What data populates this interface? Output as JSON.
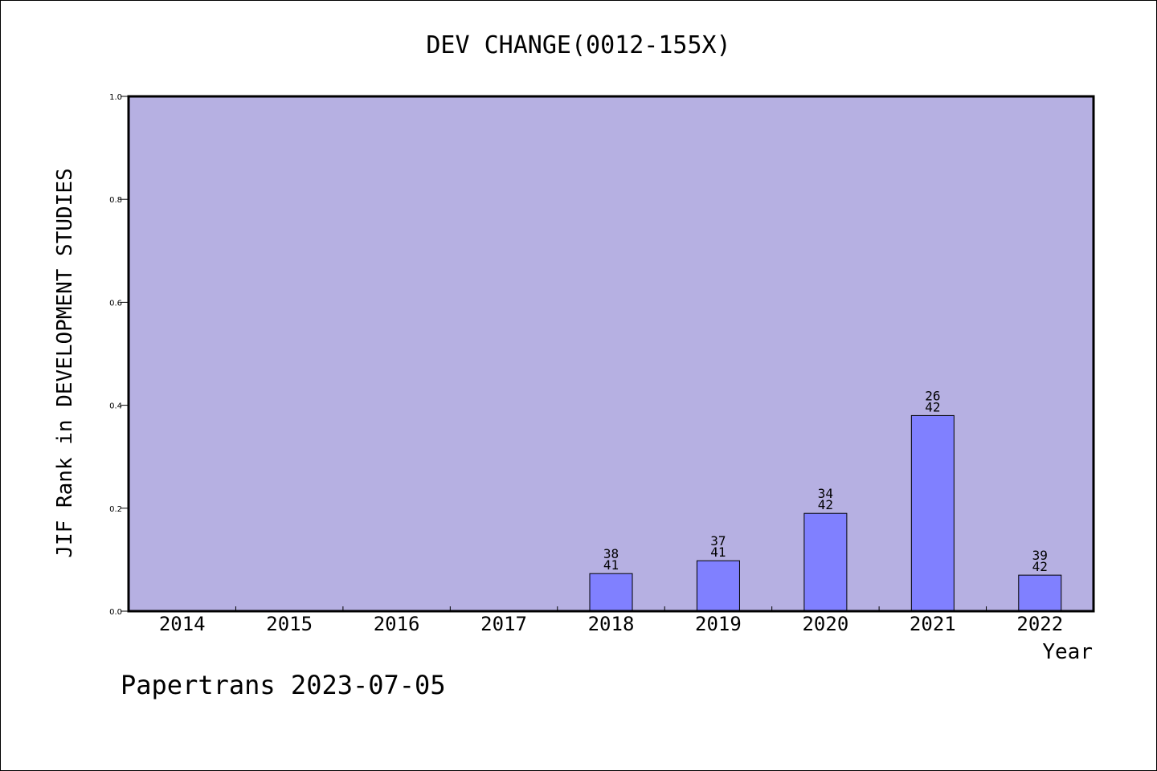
{
  "chart_data": {
    "type": "bar",
    "title": "DEV CHANGE(0012-155X)",
    "xlabel": "Year",
    "ylabel": "JIF Rank in DEVELOPMENT STUDIES",
    "categories": [
      "2014",
      "2015",
      "2016",
      "2017",
      "2018",
      "2019",
      "2020",
      "2021",
      "2022"
    ],
    "values": [
      null,
      null,
      null,
      null,
      0.073,
      0.098,
      0.19,
      0.38,
      0.07
    ],
    "rank_labels": [
      null,
      null,
      null,
      null,
      "38",
      "37",
      "34",
      "26",
      "39"
    ],
    "total_labels": [
      null,
      null,
      null,
      null,
      "41",
      "41",
      "42",
      "42",
      "42"
    ],
    "ylim": [
      0,
      1.0
    ],
    "yticks": [
      "0.0",
      "0.2",
      "0.4",
      "0.6",
      "0.8",
      "1.0"
    ],
    "grid": false,
    "colors": {
      "plot_background": "#b6b0e2",
      "bar": "#8080ff",
      "axis": "#000000"
    }
  },
  "footer": {
    "watermark": "Papertrans 2023-07-05"
  }
}
